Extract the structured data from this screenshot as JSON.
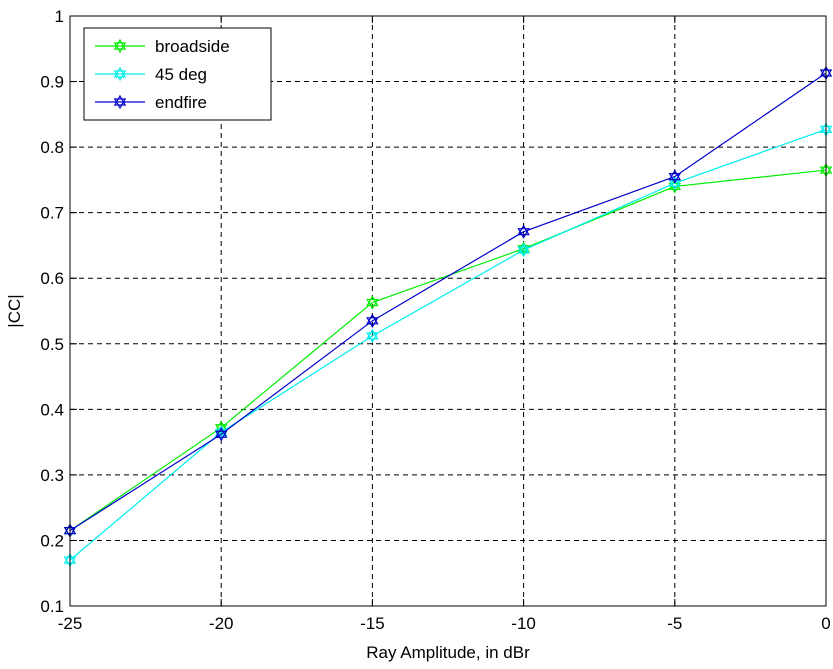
{
  "chart_data": {
    "type": "line",
    "title": "",
    "xlabel": "Ray Amplitude, in dBr",
    "ylabel": "|CC|",
    "xlim": [
      -25,
      0
    ],
    "ylim": [
      0.1,
      1
    ],
    "xticks": [
      -25,
      -20,
      -15,
      -10,
      -5,
      0
    ],
    "xtick_labels": [
      "-25",
      "-20",
      "-15",
      "-10",
      "-5",
      "0"
    ],
    "yticks": [
      0.1,
      0.2,
      0.3,
      0.4,
      0.5,
      0.6,
      0.7,
      0.8,
      0.9,
      1
    ],
    "ytick_labels": [
      "0.1",
      "0.2",
      "0.3",
      "0.4",
      "0.5",
      "0.6",
      "0.7",
      "0.8",
      "0.9",
      "1"
    ],
    "grid": true,
    "legend_position": "top-left",
    "x": [
      -25,
      -20,
      -15,
      -10,
      -5,
      0
    ],
    "series": [
      {
        "name": "broadside",
        "color": "#00ee00",
        "marker": "hexagram",
        "values": [
          0.215,
          0.372,
          0.563,
          0.645,
          0.74,
          0.765
        ]
      },
      {
        "name": "45 deg",
        "color": "#00eeee",
        "marker": "hexagram",
        "values": [
          0.17,
          0.365,
          0.512,
          0.643,
          0.745,
          0.827
        ]
      },
      {
        "name": "endfire",
        "color": "#0000cc",
        "marker": "hexagram",
        "values": [
          0.215,
          0.362,
          0.535,
          0.671,
          0.755,
          0.913
        ]
      }
    ]
  }
}
